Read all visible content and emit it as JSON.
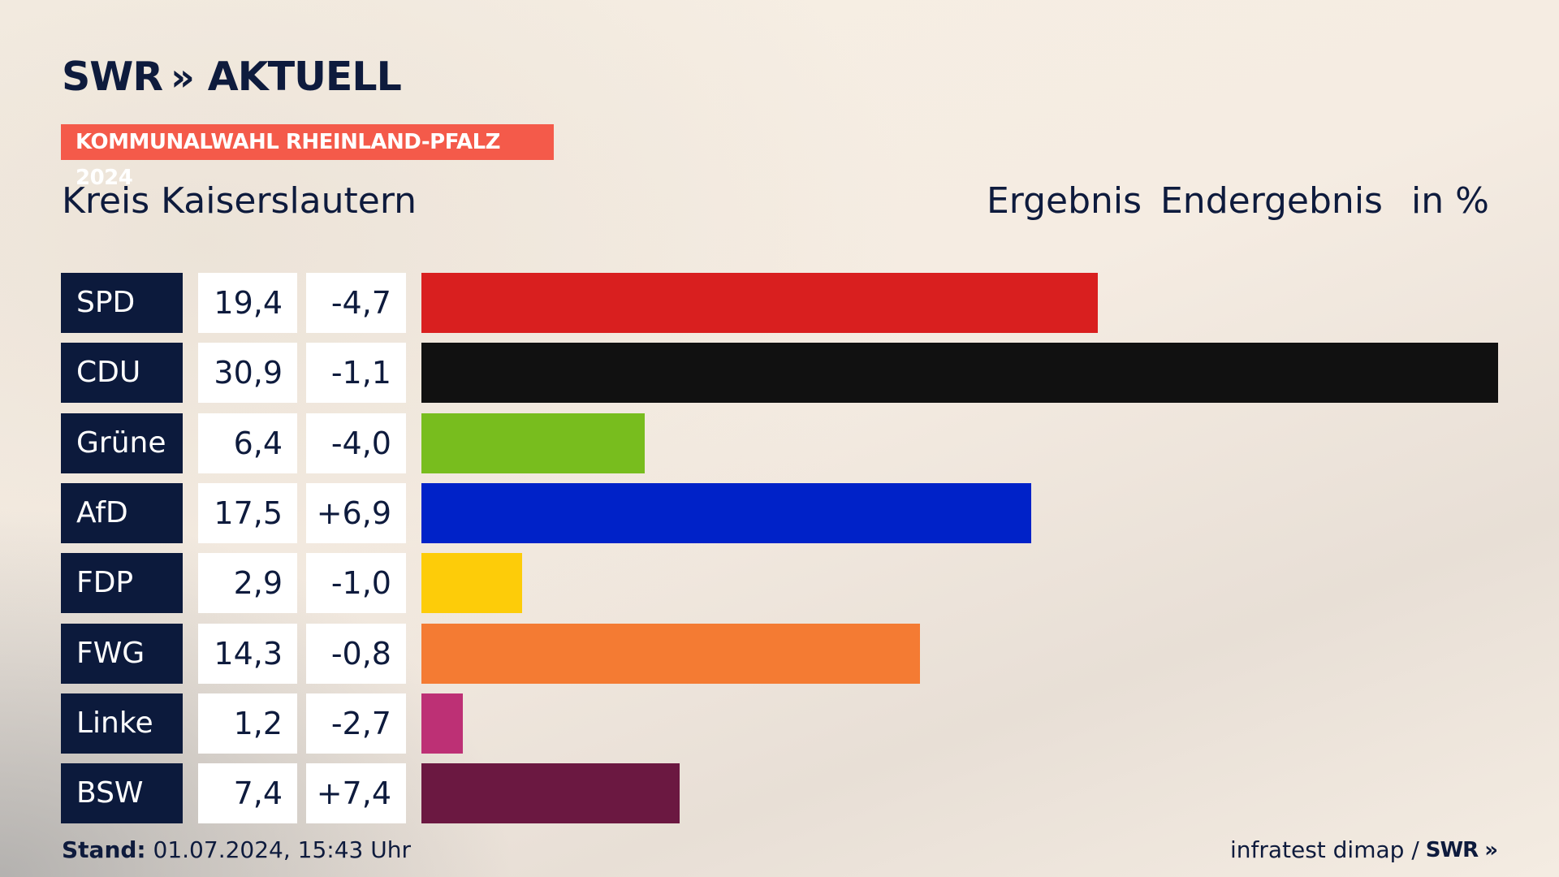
{
  "header": {
    "brand": "SWR",
    "brand_chevrons": "»",
    "brand_section": "AKTUELL",
    "kicker": "KOMMUNALWAHL RHEINLAND-PFALZ 2024",
    "region": "Kreis Kaiserslautern",
    "col_result": "Ergebnis",
    "col_final": "Endergebnis",
    "col_unit": "in %"
  },
  "footer": {
    "stand_label": "Stand:",
    "stand_value": "01.07.2024, 15:43 Uhr",
    "source": "infratest dimap /",
    "source_brand": "SWR"
  },
  "chart_data": {
    "type": "bar",
    "orientation": "horizontal",
    "categories": [
      "SPD",
      "CDU",
      "Grüne",
      "AfD",
      "FDP",
      "FWG",
      "Linke",
      "BSW"
    ],
    "values": [
      19.4,
      30.9,
      6.4,
      17.5,
      2.9,
      14.3,
      1.2,
      7.4
    ],
    "value_labels": [
      "19,4",
      "30,9",
      "6,4",
      "17,5",
      "2,9",
      "14,3",
      "1,2",
      "7,4"
    ],
    "change_labels": [
      "-4,7",
      "-1,1",
      "-4,0",
      "+6,9",
      "-1,0",
      "-0,8",
      "-2,7",
      "+7,4"
    ],
    "changes": [
      -4.7,
      -1.1,
      -4.0,
      6.9,
      -1.0,
      -0.8,
      -2.7,
      7.4
    ],
    "colors": [
      "#d91f1f",
      "#111111",
      "#78bd1e",
      "#0022c8",
      "#fdcc09",
      "#f47b33",
      "#bd3075",
      "#6b1841"
    ],
    "xlim": [
      0,
      30.9
    ],
    "grid": false
  }
}
